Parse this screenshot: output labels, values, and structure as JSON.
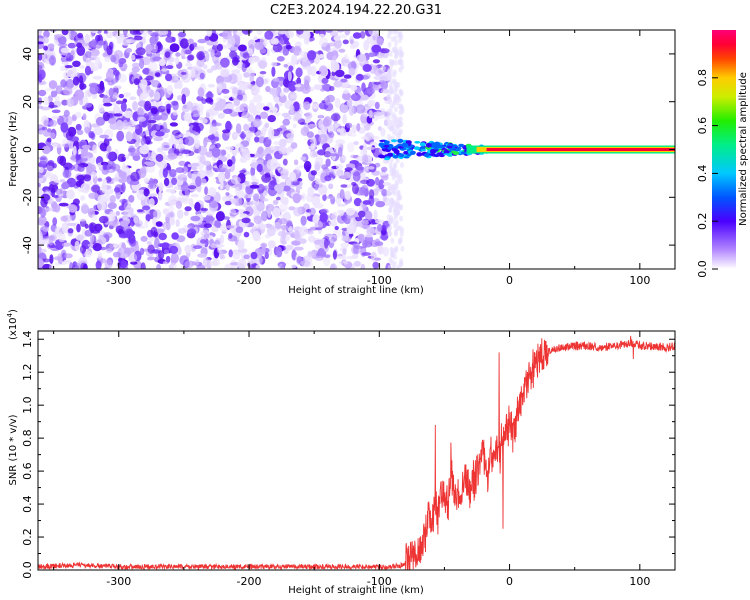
{
  "title": "C2E3.2024.194.22.20.G31",
  "chart_data": [
    {
      "type": "heatmap",
      "xlabel": "Height of straight line (km)",
      "ylabel": "Frequency (Hz)",
      "xlim": [
        -362,
        127
      ],
      "ylim": [
        -50,
        50
      ],
      "x_ticks": [
        -300,
        -200,
        -100,
        0,
        100
      ],
      "y_ticks": [
        -40,
        -20,
        0,
        20,
        40
      ],
      "colorbar": {
        "label": "Normalized spectral amplitude",
        "range": [
          0.0,
          1.0
        ],
        "ticks": [
          "0.0",
          "0.2",
          "0.4",
          "0.6",
          "0.8"
        ],
        "colormap": "rainbow (white-violet-blue-cyan-green-yellow-red-magenta)"
      },
      "features": [
        {
          "description": "scattered low-amplitude noise",
          "x_range": [
            -362,
            -93
          ],
          "freq_range": [
            -50,
            50
          ],
          "amplitude": 0.15
        },
        {
          "description": "high-amplitude narrow carrier line",
          "x_range": [
            -10,
            127
          ],
          "freq": 0,
          "amplitude": 0.95
        }
      ]
    },
    {
      "type": "line",
      "xlabel": "Height of straight line (km)",
      "ylabel": "SNR (10 * v/v)",
      "y_scale_note": "(x10",
      "y_scale_exp": "4",
      "y_scale_close": ")",
      "xlim": [
        -362,
        127
      ],
      "ylim": [
        0,
        1.45
      ],
      "x_ticks": [
        -300,
        -200,
        -100,
        0,
        100
      ],
      "y_ticks": [
        "0.0",
        "0.2",
        "0.4",
        "0.6",
        "0.8",
        "1.0",
        "1.2",
        "1.4"
      ],
      "color": "#ee3333",
      "series": [
        {
          "x": [
            -362,
            -330,
            -300,
            -250,
            -200,
            -150,
            -120,
            -100,
            -90,
            -80,
            -75,
            -70,
            -65,
            -62,
            -60,
            -57,
            -55,
            -52,
            -50,
            -47,
            -45,
            -42,
            -40,
            -35,
            -30,
            -25,
            -20,
            -17,
            -15,
            -12,
            -10,
            -8,
            -6,
            -4,
            -2,
            0,
            3,
            6,
            10,
            15,
            20,
            25,
            30,
            40,
            50,
            60,
            70,
            80,
            90,
            95,
            100,
            110,
            120,
            127
          ],
          "y": [
            0.02,
            0.03,
            0.02,
            0.02,
            0.02,
            0.02,
            0.02,
            0.02,
            0.02,
            0.03,
            0.06,
            0.12,
            0.2,
            0.35,
            0.28,
            0.45,
            0.3,
            0.5,
            0.42,
            0.38,
            0.65,
            0.45,
            0.4,
            0.55,
            0.48,
            0.6,
            0.7,
            0.55,
            0.72,
            0.68,
            0.78,
            0.65,
            0.8,
            0.75,
            0.85,
            0.9,
            0.82,
            0.95,
            1.05,
            1.15,
            1.25,
            1.3,
            1.33,
            1.35,
            1.36,
            1.36,
            1.35,
            1.36,
            1.37,
            1.38,
            1.36,
            1.36,
            1.35,
            1.36
          ]
        }
      ]
    }
  ]
}
